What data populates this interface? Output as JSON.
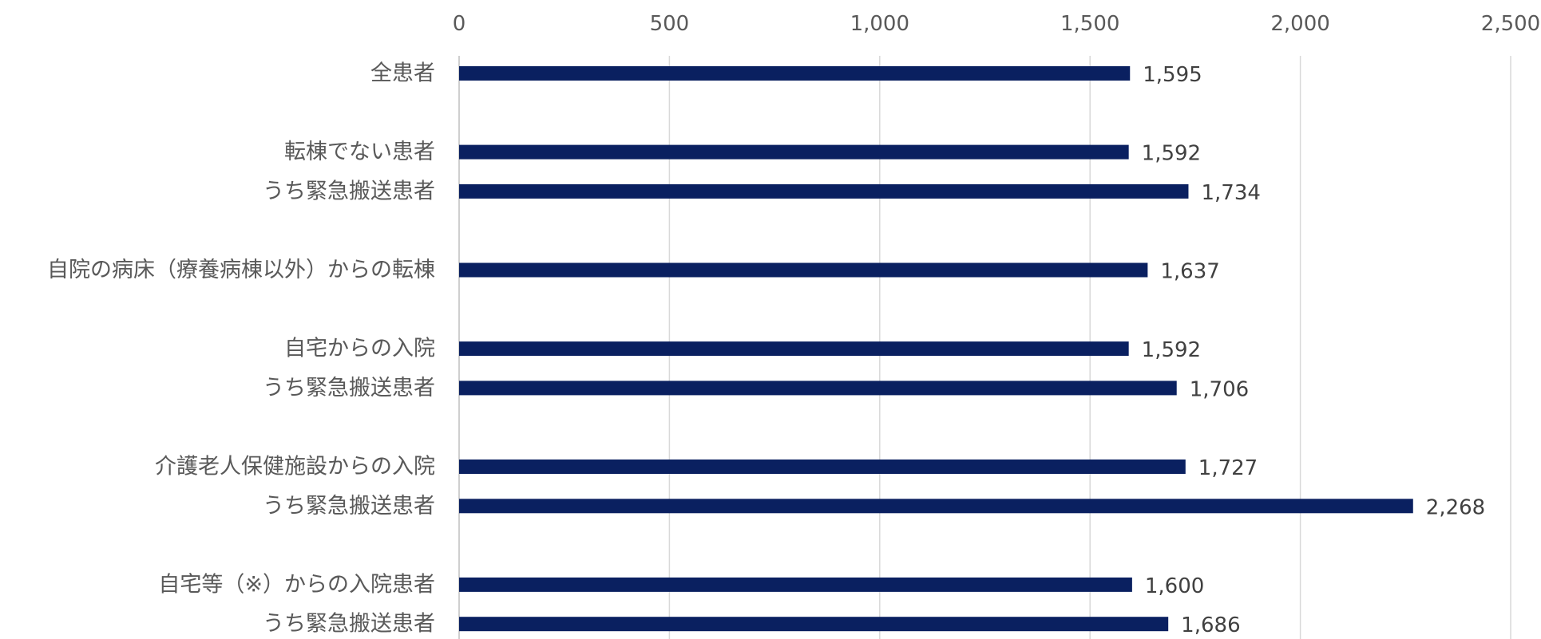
{
  "chart_data": {
    "type": "bar",
    "orientation": "horizontal",
    "title": "",
    "xlabel": "",
    "ylabel": "",
    "xlim": [
      0,
      2500
    ],
    "ticks": [
      0,
      500,
      1000,
      1500,
      2000,
      2500
    ],
    "tick_labels": [
      "0",
      "500",
      "1,000",
      "1,500",
      "2,000",
      "2,500"
    ],
    "axis_position": "top",
    "grid": true,
    "legend": "none",
    "color": "#0a2060",
    "categories": [
      "全患者",
      "",
      "転棟でない患者",
      "うち緊急搬送患者",
      "",
      "自院の病床（療養病棟以外）からの転棟",
      "",
      "自宅からの入院",
      "うち緊急搬送患者",
      "",
      "介護老人保健施設からの入院",
      "うち緊急搬送患者",
      "",
      "自宅等（※）からの入院患者",
      "うち緊急搬送患者"
    ],
    "values": [
      1595,
      null,
      1592,
      1734,
      null,
      1637,
      null,
      1592,
      1706,
      null,
      1727,
      2268,
      null,
      1600,
      1686
    ],
    "value_labels": [
      "1,595",
      "",
      "1,592",
      "1,734",
      "",
      "1,637",
      "",
      "1,592",
      "1,706",
      "",
      "1,727",
      "2,268",
      "",
      "1,600",
      "1,686"
    ]
  }
}
